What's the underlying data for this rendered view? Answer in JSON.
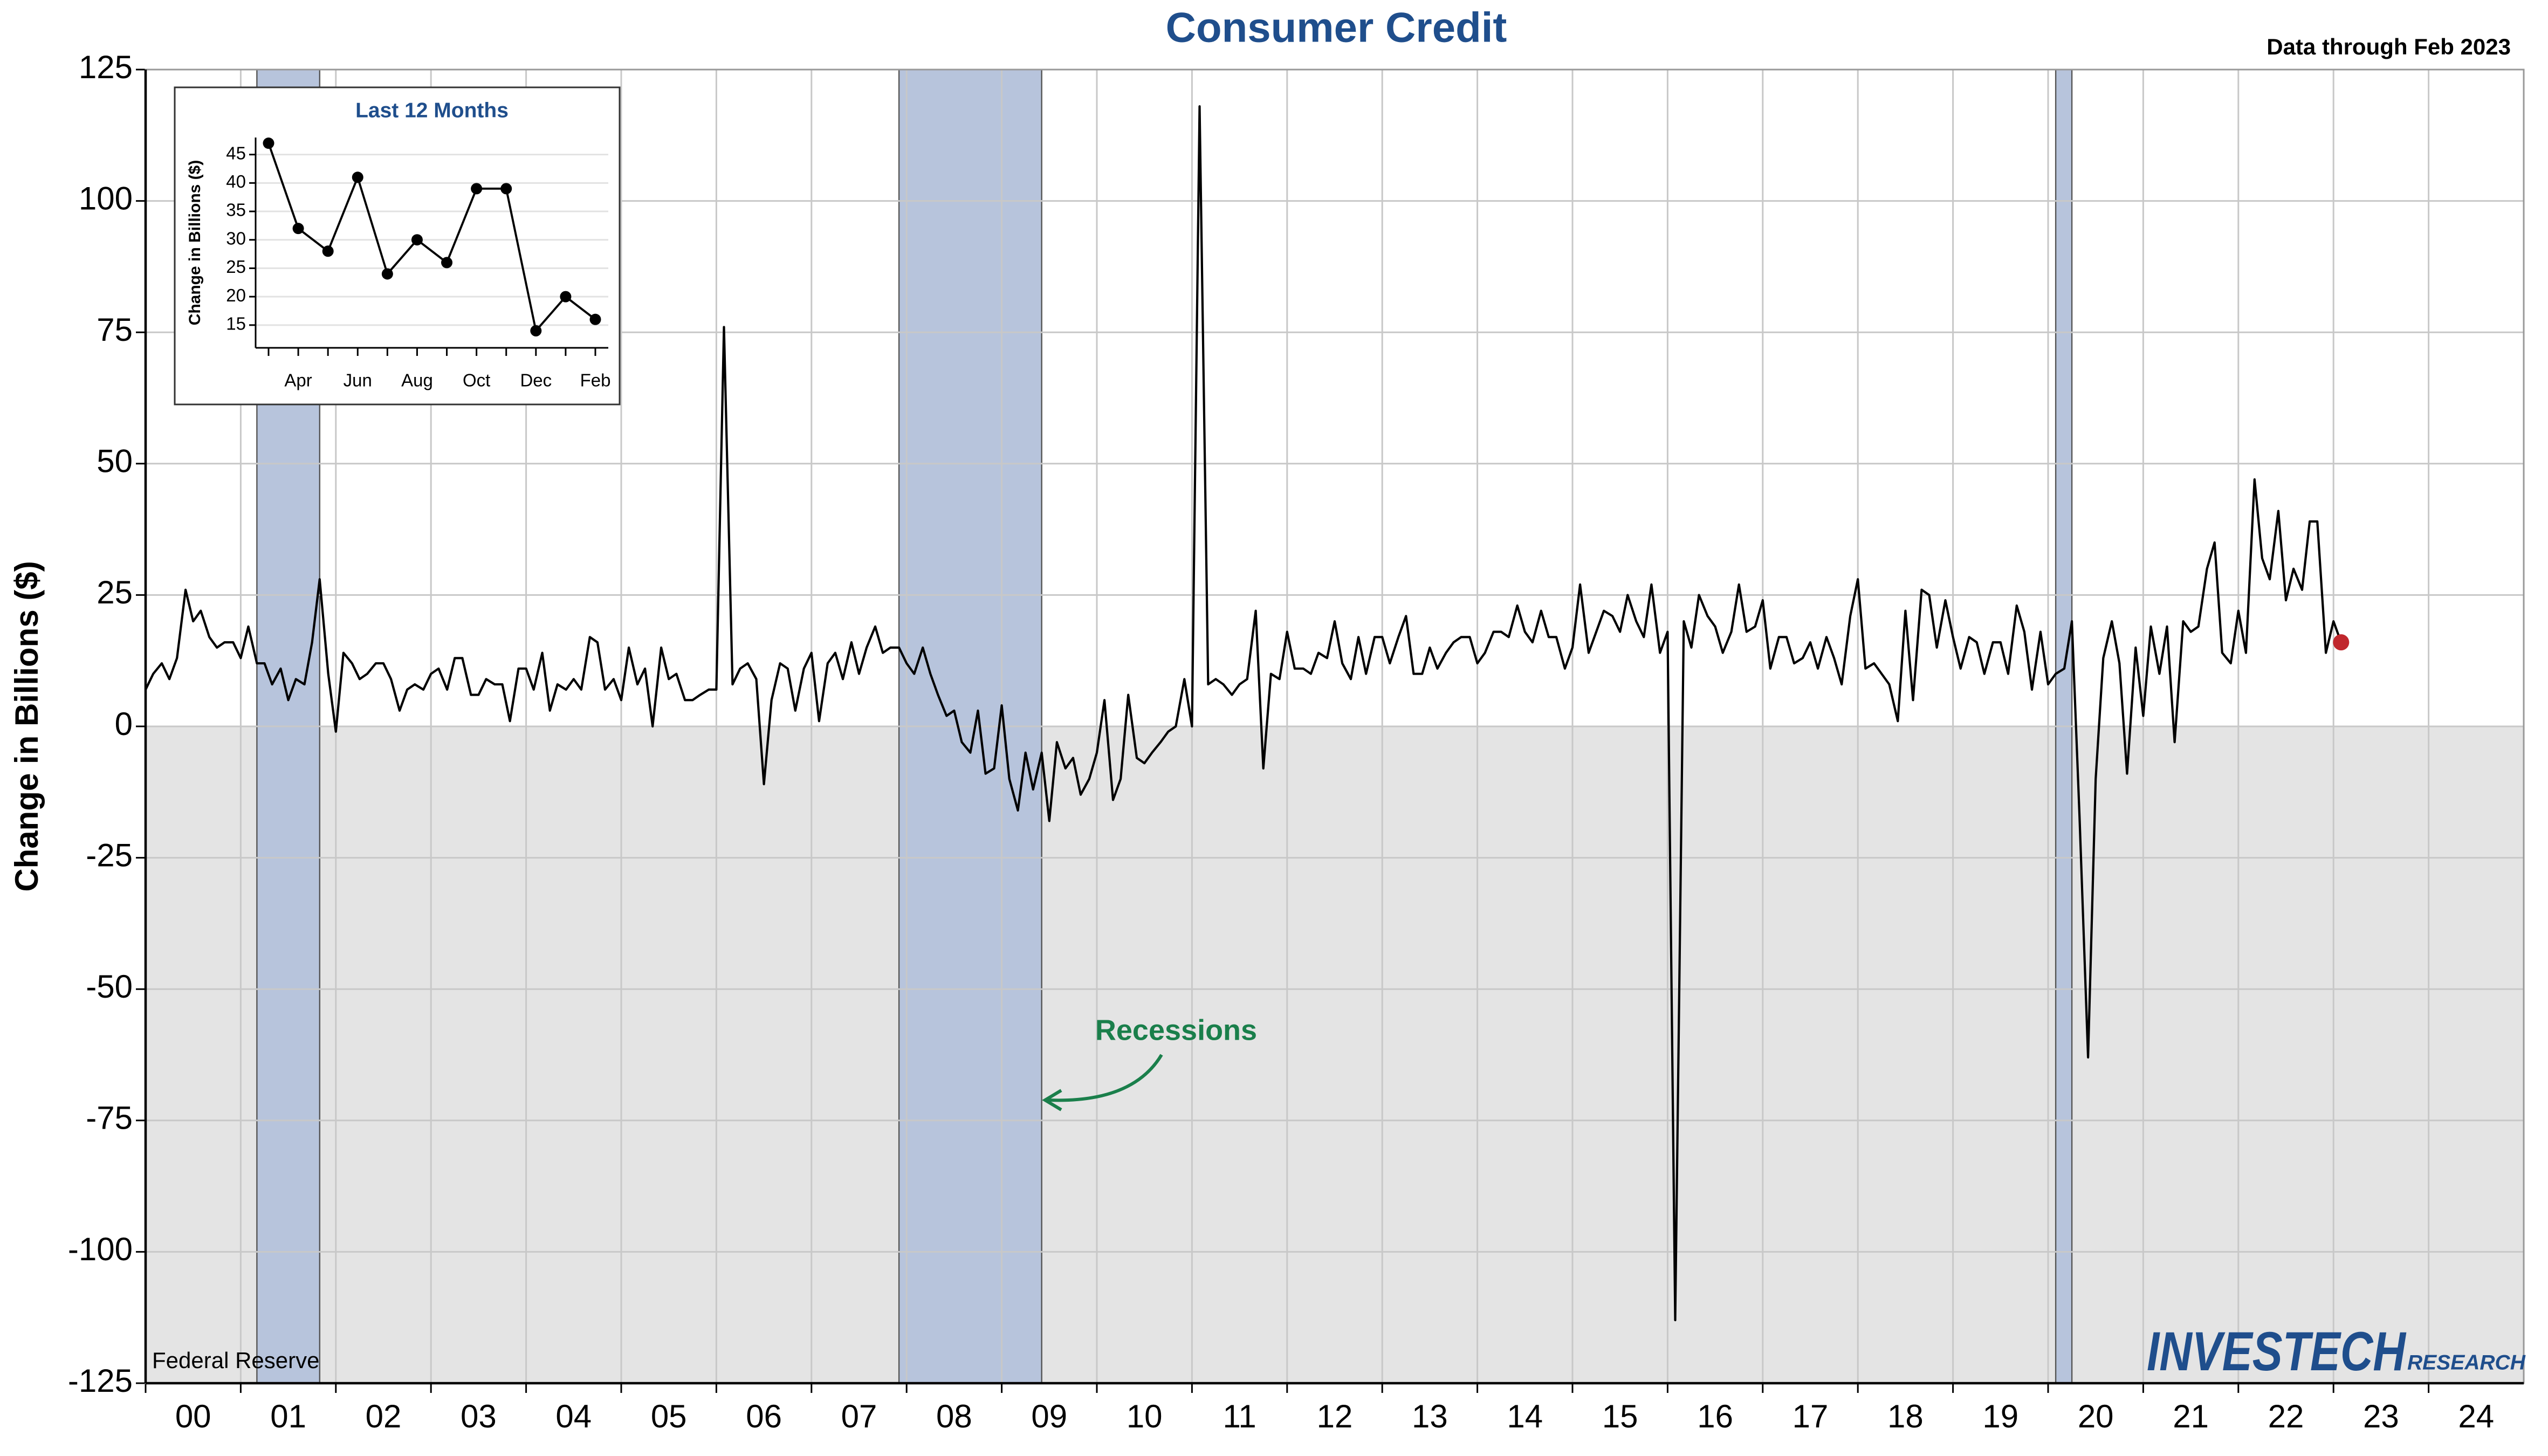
{
  "chart_data": [
    {
      "type": "line",
      "title": "Consumer Credit",
      "subtitle": "Data through Feb 2023",
      "y_label": "Change in Billions ($)",
      "source": "Federal Reserve",
      "annotation": "Recessions",
      "logo": [
        "INVESTECH",
        "RESEARCH"
      ],
      "color": "#000000",
      "highlight_color": "#c0272d",
      "recession_color": "#b7c4dc",
      "grid": true,
      "xlim": [
        2000,
        2025
      ],
      "ylim": [
        -125,
        125
      ],
      "yticks": [
        -125,
        -100,
        -75,
        -50,
        -25,
        0,
        25,
        50,
        75,
        100,
        125
      ],
      "xticks": [
        {
          "value": 2000,
          "label": "00"
        },
        {
          "value": 2001,
          "label": "01"
        },
        {
          "value": 2002,
          "label": "02"
        },
        {
          "value": 2003,
          "label": "03"
        },
        {
          "value": 2004,
          "label": "04"
        },
        {
          "value": 2005,
          "label": "05"
        },
        {
          "value": 2006,
          "label": "06"
        },
        {
          "value": 2007,
          "label": "07"
        },
        {
          "value": 2008,
          "label": "08"
        },
        {
          "value": 2009,
          "label": "09"
        },
        {
          "value": 2010,
          "label": "10"
        },
        {
          "value": 2011,
          "label": "11"
        },
        {
          "value": 2012,
          "label": "12"
        },
        {
          "value": 2013,
          "label": "13"
        },
        {
          "value": 2014,
          "label": "14"
        },
        {
          "value": 2015,
          "label": "15"
        },
        {
          "value": 2016,
          "label": "16"
        },
        {
          "value": 2017,
          "label": "17"
        },
        {
          "value": 2018,
          "label": "18"
        },
        {
          "value": 2019,
          "label": "19"
        },
        {
          "value": 2020,
          "label": "20"
        },
        {
          "value": 2021,
          "label": "21"
        },
        {
          "value": 2022,
          "label": "22"
        },
        {
          "value": 2023,
          "label": "23"
        },
        {
          "value": 2024,
          "label": "24"
        }
      ],
      "recessions": [
        [
          2001.17,
          2001.83
        ],
        [
          2007.92,
          2009.42
        ],
        [
          2020.08,
          2020.25
        ]
      ],
      "x": [
        2000.0,
        2000.08,
        2000.17,
        2000.25,
        2000.33,
        2000.42,
        2000.5,
        2000.58,
        2000.67,
        2000.75,
        2000.83,
        2000.92,
        2001.0,
        2001.08,
        2001.17,
        2001.25,
        2001.33,
        2001.42,
        2001.5,
        2001.58,
        2001.67,
        2001.75,
        2001.83,
        2001.92,
        2002.0,
        2002.08,
        2002.17,
        2002.25,
        2002.33,
        2002.42,
        2002.5,
        2002.58,
        2002.67,
        2002.75,
        2002.83,
        2002.92,
        2003.0,
        2003.08,
        2003.17,
        2003.25,
        2003.33,
        2003.42,
        2003.5,
        2003.58,
        2003.67,
        2003.75,
        2003.83,
        2003.92,
        2004.0,
        2004.08,
        2004.17,
        2004.25,
        2004.33,
        2004.42,
        2004.5,
        2004.58,
        2004.67,
        2004.75,
        2004.83,
        2004.92,
        2005.0,
        2005.08,
        2005.17,
        2005.25,
        2005.33,
        2005.42,
        2005.5,
        2005.58,
        2005.67,
        2005.75,
        2005.83,
        2005.92,
        2006.0,
        2006.08,
        2006.17,
        2006.25,
        2006.33,
        2006.42,
        2006.5,
        2006.58,
        2006.67,
        2006.75,
        2006.83,
        2006.92,
        2007.0,
        2007.08,
        2007.17,
        2007.25,
        2007.33,
        2007.42,
        2007.5,
        2007.58,
        2007.67,
        2007.75,
        2007.83,
        2007.92,
        2008.0,
        2008.08,
        2008.17,
        2008.25,
        2008.33,
        2008.42,
        2008.5,
        2008.58,
        2008.67,
        2008.75,
        2008.83,
        2008.92,
        2009.0,
        2009.08,
        2009.17,
        2009.25,
        2009.33,
        2009.42,
        2009.5,
        2009.58,
        2009.67,
        2009.75,
        2009.83,
        2009.92,
        2010.0,
        2010.08,
        2010.17,
        2010.25,
        2010.33,
        2010.42,
        2010.5,
        2010.58,
        2010.67,
        2010.75,
        2010.83,
        2010.92,
        2011.0,
        2011.08,
        2011.17,
        2011.25,
        2011.33,
        2011.42,
        2011.5,
        2011.58,
        2011.67,
        2011.75,
        2011.83,
        2011.92,
        2012.0,
        2012.08,
        2012.17,
        2012.25,
        2012.33,
        2012.42,
        2012.5,
        2012.58,
        2012.67,
        2012.75,
        2012.83,
        2012.92,
        2013.0,
        2013.08,
        2013.17,
        2013.25,
        2013.33,
        2013.42,
        2013.5,
        2013.58,
        2013.67,
        2013.75,
        2013.83,
        2013.92,
        2014.0,
        2014.08,
        2014.17,
        2014.25,
        2014.33,
        2014.42,
        2014.5,
        2014.58,
        2014.67,
        2014.75,
        2014.83,
        2014.92,
        2015.0,
        2015.08,
        2015.17,
        2015.25,
        2015.33,
        2015.42,
        2015.5,
        2015.58,
        2015.67,
        2015.75,
        2015.83,
        2015.92,
        2016.0,
        2016.08,
        2016.17,
        2016.25,
        2016.33,
        2016.42,
        2016.5,
        2016.58,
        2016.67,
        2016.75,
        2016.83,
        2016.92,
        2017.0,
        2017.08,
        2017.17,
        2017.25,
        2017.33,
        2017.42,
        2017.5,
        2017.58,
        2017.67,
        2017.75,
        2017.83,
        2017.92,
        2018.0,
        2018.08,
        2018.17,
        2018.25,
        2018.33,
        2018.42,
        2018.5,
        2018.58,
        2018.67,
        2018.75,
        2018.83,
        2018.92,
        2019.0,
        2019.08,
        2019.17,
        2019.25,
        2019.33,
        2019.42,
        2019.5,
        2019.58,
        2019.67,
        2019.75,
        2019.83,
        2019.92,
        2020.0,
        2020.08,
        2020.17,
        2020.25,
        2020.33,
        2020.42,
        2020.5,
        2020.58,
        2020.67,
        2020.75,
        2020.83,
        2020.92,
        2021.0,
        2021.08,
        2021.17,
        2021.25,
        2021.33,
        2021.42,
        2021.5,
        2021.58,
        2021.67,
        2021.75,
        2021.83,
        2021.92,
        2022.0,
        2022.08,
        2022.17,
        2022.25,
        2022.33,
        2022.42,
        2022.5,
        2022.58,
        2022.67,
        2022.75,
        2022.83,
        2022.92,
        2023.0,
        2023.08
      ],
      "values": [
        7,
        10,
        12,
        9,
        13,
        26,
        20,
        22,
        17,
        15,
        16,
        16,
        13,
        19,
        12,
        12,
        8,
        11,
        5,
        9,
        8,
        16,
        28,
        10,
        -1,
        14,
        12,
        9,
        10,
        12,
        12,
        9,
        3,
        7,
        8,
        7,
        10,
        11,
        7,
        13,
        13,
        6,
        6,
        9,
        8,
        8,
        1,
        11,
        11,
        7,
        14,
        3,
        8,
        7,
        9,
        7,
        17,
        16,
        7,
        9,
        5,
        15,
        8,
        11,
        0,
        15,
        9,
        10,
        5,
        5,
        6,
        7,
        7,
        76,
        8,
        11,
        12,
        9,
        -11,
        5,
        12,
        11,
        3,
        11,
        14,
        1,
        12,
        14,
        9,
        16,
        10,
        15,
        19,
        14,
        15,
        15,
        12,
        10,
        15,
        10,
        6,
        2,
        3,
        -3,
        -5,
        3,
        -9,
        -8,
        4,
        -10,
        -16,
        -5,
        -12,
        -5,
        -18,
        -3,
        -8,
        -6,
        -13,
        -10,
        -5,
        5,
        -14,
        -10,
        6,
        -6,
        -7,
        -5,
        -3,
        -1,
        0,
        9,
        0,
        118,
        8,
        9,
        8,
        6,
        8,
        9,
        22,
        -8,
        10,
        9,
        18,
        11,
        11,
        10,
        14,
        13,
        20,
        12,
        9,
        17,
        10,
        17,
        17,
        12,
        17,
        21,
        10,
        10,
        15,
        11,
        14,
        16,
        17,
        17,
        12,
        14,
        18,
        18,
        17,
        23,
        18,
        16,
        22,
        17,
        17,
        11,
        15,
        27,
        14,
        18,
        22,
        21,
        18,
        25,
        20,
        17,
        27,
        14,
        18,
        -113,
        20,
        15,
        25,
        21,
        19,
        14,
        18,
        27,
        18,
        19,
        24,
        11,
        17,
        17,
        12,
        13,
        16,
        11,
        17,
        13,
        8,
        21,
        28,
        11,
        12,
        10,
        8,
        1,
        22,
        5,
        26,
        25,
        15,
        24,
        17,
        11,
        17,
        16,
        10,
        16,
        16,
        10,
        23,
        18,
        7,
        18,
        8,
        10,
        11,
        20,
        -17,
        -63,
        -10,
        13,
        20,
        12,
        -9,
        15,
        2,
        19,
        10,
        19,
        -3,
        20,
        18,
        19,
        30,
        35,
        14,
        12,
        22,
        14,
        47,
        32,
        28,
        41,
        24,
        30,
        26,
        39,
        39,
        14,
        20,
        16
      ]
    },
    {
      "type": "line",
      "title": "Last 12 Months",
      "y_label": "Change in Billions ($)",
      "color": "#000000",
      "categories": [
        null,
        "Apr",
        null,
        "Jun",
        null,
        "Aug",
        null,
        "Oct",
        null,
        "Dec",
        null,
        "Feb"
      ],
      "values": [
        47,
        32,
        28,
        41,
        24,
        30,
        26,
        39,
        39,
        14,
        20,
        16
      ],
      "ylim": [
        11,
        48
      ],
      "yticks": [
        15,
        20,
        25,
        30,
        35,
        40,
        45
      ],
      "grid": true
    }
  ]
}
